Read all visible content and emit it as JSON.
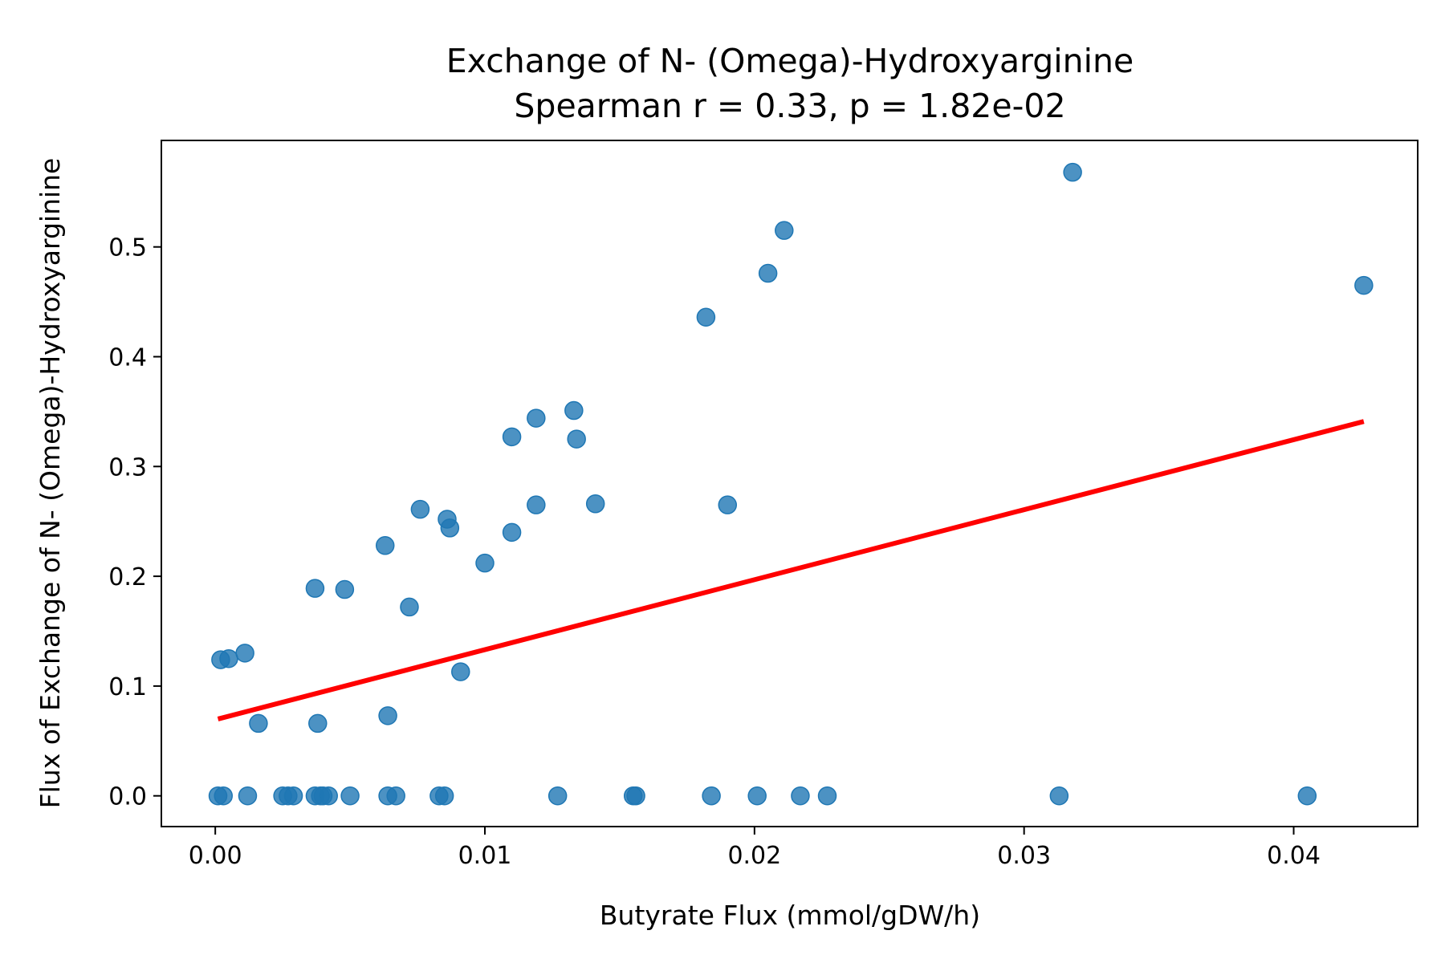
{
  "chart_data": {
    "type": "scatter",
    "title": "Exchange of N- (Omega)-Hydroxyarginine",
    "subtitle": "Spearman r = 0.33, p = 1.82e-02",
    "xlabel": "Butyrate Flux (mmol/gDW/h)",
    "ylabel": "Flux of Exchange of N- (Omega)-Hydroxyarginine",
    "xlim": [
      -0.002,
      0.0446
    ],
    "ylim": [
      -0.028,
      0.597
    ],
    "xticks": [
      0.0,
      0.01,
      0.02,
      0.03,
      0.04
    ],
    "xtick_labels": [
      "0.00",
      "0.01",
      "0.02",
      "0.03",
      "0.04"
    ],
    "yticks": [
      0.0,
      0.1,
      0.2,
      0.3,
      0.4,
      0.5
    ],
    "ytick_labels": [
      "0.0",
      "0.1",
      "0.2",
      "0.3",
      "0.4",
      "0.5"
    ],
    "grid": false,
    "point_color": "#1f77b4",
    "line_color": "#ff0000",
    "points": [
      {
        "x": 0.0002,
        "y": 0.124
      },
      {
        "x": 0.0005,
        "y": 0.125
      },
      {
        "x": 0.0011,
        "y": 0.13
      },
      {
        "x": 0.0016,
        "y": 0.066
      },
      {
        "x": 0.0037,
        "y": 0.189
      },
      {
        "x": 0.0038,
        "y": 0.066
      },
      {
        "x": 0.0048,
        "y": 0.188
      },
      {
        "x": 0.0063,
        "y": 0.228
      },
      {
        "x": 0.0064,
        "y": 0.073
      },
      {
        "x": 0.0072,
        "y": 0.172
      },
      {
        "x": 0.0076,
        "y": 0.261
      },
      {
        "x": 0.0086,
        "y": 0.252
      },
      {
        "x": 0.0087,
        "y": 0.244
      },
      {
        "x": 0.0091,
        "y": 0.113
      },
      {
        "x": 0.01,
        "y": 0.212
      },
      {
        "x": 0.011,
        "y": 0.327
      },
      {
        "x": 0.011,
        "y": 0.24
      },
      {
        "x": 0.0119,
        "y": 0.344
      },
      {
        "x": 0.0119,
        "y": 0.265
      },
      {
        "x": 0.0133,
        "y": 0.351
      },
      {
        "x": 0.0134,
        "y": 0.325
      },
      {
        "x": 0.0141,
        "y": 0.266
      },
      {
        "x": 0.0182,
        "y": 0.436
      },
      {
        "x": 0.019,
        "y": 0.265
      },
      {
        "x": 0.0205,
        "y": 0.476
      },
      {
        "x": 0.0211,
        "y": 0.515
      },
      {
        "x": 0.0318,
        "y": 0.568
      },
      {
        "x": 0.0426,
        "y": 0.465
      },
      {
        "x": 0.0001,
        "y": 0.0
      },
      {
        "x": 0.0003,
        "y": 0.0
      },
      {
        "x": 0.0012,
        "y": 0.0
      },
      {
        "x": 0.0025,
        "y": 0.0
      },
      {
        "x": 0.0027,
        "y": 0.0
      },
      {
        "x": 0.0029,
        "y": 0.0
      },
      {
        "x": 0.0037,
        "y": 0.0
      },
      {
        "x": 0.0039,
        "y": 0.0
      },
      {
        "x": 0.004,
        "y": 0.0
      },
      {
        "x": 0.0042,
        "y": 0.0
      },
      {
        "x": 0.005,
        "y": 0.0
      },
      {
        "x": 0.0064,
        "y": 0.0
      },
      {
        "x": 0.0067,
        "y": 0.0
      },
      {
        "x": 0.0083,
        "y": 0.0
      },
      {
        "x": 0.0085,
        "y": 0.0
      },
      {
        "x": 0.0127,
        "y": 0.0
      },
      {
        "x": 0.0155,
        "y": 0.0
      },
      {
        "x": 0.0156,
        "y": 0.0
      },
      {
        "x": 0.0184,
        "y": 0.0
      },
      {
        "x": 0.0201,
        "y": 0.0
      },
      {
        "x": 0.0217,
        "y": 0.0
      },
      {
        "x": 0.0227,
        "y": 0.0
      },
      {
        "x": 0.0313,
        "y": 0.0
      },
      {
        "x": 0.0405,
        "y": 0.0
      }
    ],
    "fit_line": {
      "x": [
        0.0001,
        0.0426
      ],
      "y": [
        0.07,
        0.341
      ]
    }
  }
}
